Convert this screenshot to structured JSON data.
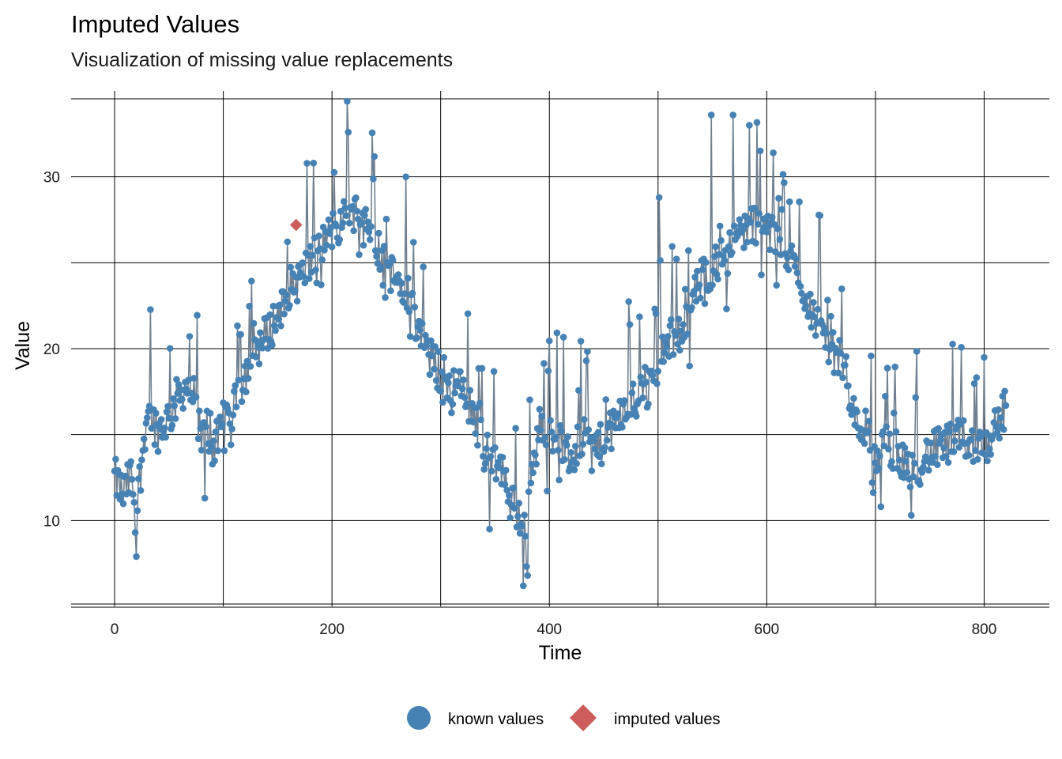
{
  "chart_data": {
    "type": "line",
    "title": "Imputed Values",
    "subtitle": "Visualization of missing value replacements",
    "xlabel": "Time",
    "ylabel": "Value",
    "xlim": [
      -40,
      860
    ],
    "ylim": [
      5,
      35
    ],
    "x_ticks": [
      0,
      200,
      400,
      600,
      800
    ],
    "y_ticks": [
      10,
      20,
      30
    ],
    "grid": true,
    "legend_position": "bottom",
    "colors": {
      "known": "#4682B4",
      "imputed": "#CD5C5C",
      "line": "#708090"
    },
    "series": [
      {
        "name": "known values",
        "marker": "circle",
        "keypoints": [
          [
            0,
            12.5
          ],
          [
            8,
            11.5
          ],
          [
            15,
            12.6
          ],
          [
            20,
            10.5
          ],
          [
            30,
            16.5
          ],
          [
            40,
            15.2
          ],
          [
            50,
            16.0
          ],
          [
            60,
            17.5
          ],
          [
            70,
            18.0
          ],
          [
            80,
            15.0
          ],
          [
            90,
            14.2
          ],
          [
            100,
            15.2
          ],
          [
            110,
            16.5
          ],
          [
            120,
            18.5
          ],
          [
            130,
            20.0
          ],
          [
            140,
            20.8
          ],
          [
            150,
            22.0
          ],
          [
            160,
            23.5
          ],
          [
            170,
            24.0
          ],
          [
            180,
            25.0
          ],
          [
            190,
            26.0
          ],
          [
            200,
            26.8
          ],
          [
            210,
            27.5
          ],
          [
            220,
            28.0
          ],
          [
            230,
            27.8
          ],
          [
            240,
            26.5
          ],
          [
            250,
            24.5
          ],
          [
            260,
            24.0
          ],
          [
            270,
            23.0
          ],
          [
            280,
            21.0
          ],
          [
            290,
            19.5
          ],
          [
            300,
            18.5
          ],
          [
            310,
            18.0
          ],
          [
            320,
            17.5
          ],
          [
            330,
            16.5
          ],
          [
            340,
            14.0
          ],
          [
            350,
            13.5
          ],
          [
            360,
            12.5
          ],
          [
            370,
            10.5
          ],
          [
            380,
            10.0
          ],
          [
            390,
            15.5
          ],
          [
            400,
            15.5
          ],
          [
            410,
            14.5
          ],
          [
            420,
            13.5
          ],
          [
            430,
            14.8
          ],
          [
            440,
            14.2
          ],
          [
            450,
            14.5
          ],
          [
            460,
            15.5
          ],
          [
            470,
            16.5
          ],
          [
            480,
            17.0
          ],
          [
            490,
            17.5
          ],
          [
            500,
            19.0
          ],
          [
            510,
            20.5
          ],
          [
            520,
            21.0
          ],
          [
            530,
            22.5
          ],
          [
            540,
            24.0
          ],
          [
            550,
            24.8
          ],
          [
            560,
            25.5
          ],
          [
            570,
            26.5
          ],
          [
            580,
            27.0
          ],
          [
            590,
            27.3
          ],
          [
            600,
            27.0
          ],
          [
            610,
            26.0
          ],
          [
            620,
            25.5
          ],
          [
            630,
            24.0
          ],
          [
            640,
            22.5
          ],
          [
            650,
            21.0
          ],
          [
            660,
            20.0
          ],
          [
            670,
            19.0
          ],
          [
            680,
            16.0
          ],
          [
            690,
            15.5
          ],
          [
            700,
            13.5
          ],
          [
            710,
            14.5
          ],
          [
            720,
            14.0
          ],
          [
            730,
            13.0
          ],
          [
            740,
            13.2
          ],
          [
            750,
            14.0
          ],
          [
            760,
            14.2
          ],
          [
            770,
            14.5
          ],
          [
            780,
            14.8
          ],
          [
            790,
            14.5
          ],
          [
            800,
            14.0
          ],
          [
            810,
            15.5
          ],
          [
            820,
            16.5
          ]
        ]
      },
      {
        "name": "imputed values",
        "marker": "diamond",
        "points": [
          [
            167,
            27.2
          ]
        ]
      }
    ],
    "legend": [
      "known values",
      "imputed values"
    ]
  }
}
